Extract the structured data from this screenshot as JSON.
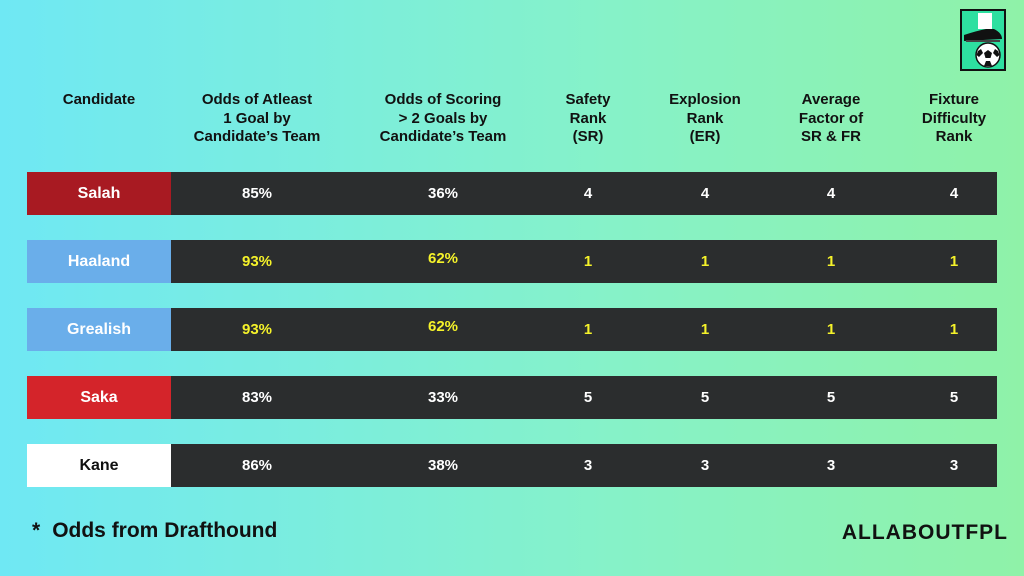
{
  "headers": [
    "Candidate",
    "Odds of Atleast\n1 Goal by\nCandidate’s Team",
    "Odds of Scoring\n> 2 Goals by\nCandidate’s Team",
    "Safety\nRank\n(SR)",
    "Explosion\nRank\n(ER)",
    "Average\nFactor of\nSR & FR",
    "Fixture\nDifficulty\nRank"
  ],
  "rows": [
    {
      "name": "Salah",
      "name_bg": "#a81a22",
      "name_fg": "#ffffff",
      "value_color": "#ffffff",
      "values": [
        "85%",
        "36%",
        "4",
        "4",
        "4",
        "4"
      ]
    },
    {
      "name": "Haaland",
      "name_bg": "#6aaeea",
      "name_fg": "#ffffff",
      "value_color": "#f5f22a",
      "values": [
        "93%",
        "62%",
        "1",
        "1",
        "1",
        "1"
      ]
    },
    {
      "name": "Grealish",
      "name_bg": "#6aaeea",
      "name_fg": "#ffffff",
      "value_color": "#f5f22a",
      "values": [
        "93%",
        "62%",
        "1",
        "1",
        "1",
        "1"
      ]
    },
    {
      "name": "Saka",
      "name_bg": "#d4242a",
      "name_fg": "#ffffff",
      "value_color": "#ffffff",
      "values": [
        "83%",
        "33%",
        "5",
        "5",
        "5",
        "5"
      ]
    },
    {
      "name": "Kane",
      "name_bg": "#ffffff",
      "name_fg": "#111111",
      "value_color": "#ffffff",
      "values": [
        "86%",
        "38%",
        "3",
        "3",
        "3",
        "3"
      ]
    }
  ],
  "footnote": {
    "star": "*",
    "text": "Odds from Drafthound"
  },
  "brand": "ALLABOUTFPL",
  "logo_icon": "football-boot-icon"
}
